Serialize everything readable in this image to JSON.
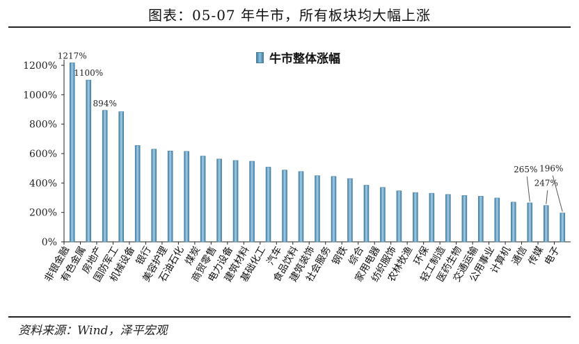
{
  "page": {
    "title": "图表：05-07 年牛市，所有板块均大幅上涨",
    "source": "资料来源：Wind，泽平宏观"
  },
  "chart_data": {
    "type": "bar",
    "title": "",
    "legend": {
      "label": "牛市整体涨幅",
      "position": "top-center"
    },
    "xlabel": "",
    "ylabel": "",
    "ylim": [
      0,
      1200
    ],
    "yticks": [
      0,
      200,
      400,
      600,
      800,
      1000,
      1200
    ],
    "ytick_suffix": "%",
    "grid": false,
    "bar_color": "#5a9ac0",
    "categories": [
      "非银金融",
      "有色金属",
      "房地产",
      "国防军工",
      "机械设备",
      "银行",
      "美容护理",
      "石油石化",
      "煤炭",
      "商贸零售",
      "电力设备",
      "建筑材料",
      "基础化工",
      "汽车",
      "食品饮料",
      "建筑装饰",
      "社会服务",
      "钢铁",
      "综合",
      "家用电器",
      "纺织服饰",
      "农林牧渔",
      "环保",
      "轻工制造",
      "医药生物",
      "交通运输",
      "公用事业",
      "计算机",
      "通信",
      "传媒",
      "电子"
    ],
    "values": [
      1217,
      1100,
      894,
      885,
      655,
      630,
      618,
      615,
      583,
      563,
      553,
      548,
      508,
      488,
      478,
      450,
      445,
      430,
      385,
      370,
      347,
      335,
      330,
      322,
      315,
      310,
      298,
      270,
      265,
      247,
      196
    ],
    "annotations": [
      {
        "category": "非银金融",
        "text": "1217%"
      },
      {
        "category": "有色金属",
        "text": "1100%"
      },
      {
        "category": "房地产",
        "text": "894%"
      },
      {
        "category": "通信",
        "text": "265%"
      },
      {
        "category": "传媒",
        "text": "247%"
      },
      {
        "category": "电子",
        "text": "196%"
      }
    ]
  }
}
